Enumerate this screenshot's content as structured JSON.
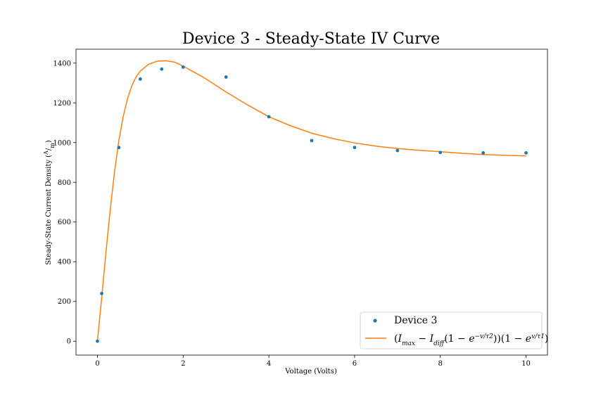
{
  "chart_data": {
    "type": "scatter",
    "title": "Device 3 - Steady-State IV Curve",
    "xlabel": "Voltage (Volts)",
    "ylabel": "Steady-State Current Density (A/m)",
    "xlim": [
      -0.5,
      10.5
    ],
    "ylim": [
      -70,
      1470
    ],
    "xticks": [
      0,
      2,
      4,
      6,
      8,
      10
    ],
    "yticks": [
      0,
      200,
      400,
      600,
      800,
      1000,
      1200,
      1400
    ],
    "grid": false,
    "legend_position": "lower-right",
    "series": [
      {
        "name": "Device 3",
        "kind": "scatter",
        "color": "#1f77b4",
        "x": [
          0,
          0.1,
          0.5,
          1,
          1.5,
          2,
          3,
          4,
          5,
          6,
          7,
          8,
          9,
          10
        ],
        "y": [
          0,
          240,
          975,
          1320,
          1370,
          1380,
          1330,
          1130,
          1010,
          975,
          960,
          950,
          948,
          948
        ]
      },
      {
        "name": "(I_max − I_diff(1 − e^(−v/τ2)))(1 − e^(−v/τ1))",
        "kind": "line",
        "color": "#ff7f0e",
        "x": [
          0,
          0.05,
          0.1,
          0.2,
          0.3,
          0.4,
          0.5,
          0.6,
          0.7,
          0.8,
          0.9,
          1.0,
          1.2,
          1.4,
          1.6,
          1.8,
          2.0,
          2.5,
          3.0,
          3.5,
          4.0,
          4.5,
          5.0,
          5.5,
          6.0,
          6.5,
          7.0,
          7.5,
          8.0,
          8.5,
          9.0,
          9.5,
          10.0
        ],
        "y": [
          0,
          110,
          220,
          450,
          665,
          855,
          1010,
          1130,
          1220,
          1285,
          1330,
          1360,
          1395,
          1410,
          1412,
          1405,
          1385,
          1325,
          1255,
          1190,
          1130,
          1085,
          1047,
          1020,
          998,
          982,
          970,
          961,
          954,
          946,
          940,
          936,
          933
        ]
      }
    ]
  }
}
